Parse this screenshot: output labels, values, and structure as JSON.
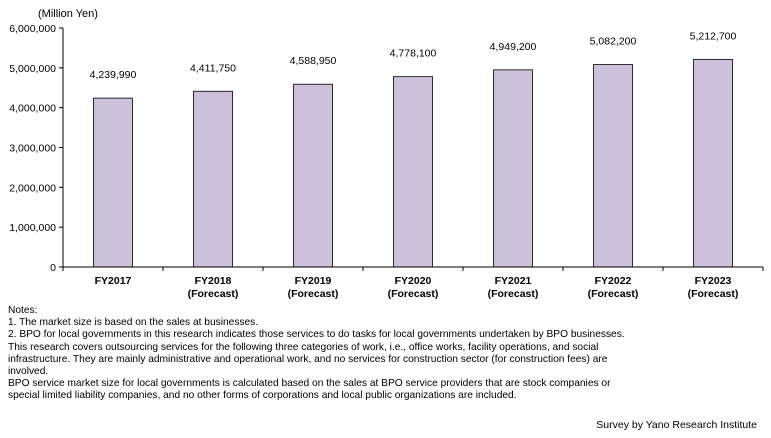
{
  "chart_data": {
    "type": "bar",
    "unit_label": "(Million Yen)",
    "categories": [
      {
        "line1": "FY2017",
        "line2": ""
      },
      {
        "line1": "FY2018",
        "line2": "(Forecast)"
      },
      {
        "line1": "FY2019",
        "line2": "(Forecast)"
      },
      {
        "line1": "FY2020",
        "line2": "(Forecast)"
      },
      {
        "line1": "FY2021",
        "line2": "(Forecast)"
      },
      {
        "line1": "FY2022",
        "line2": "(Forecast)"
      },
      {
        "line1": "FY2023",
        "line2": "(Forecast)"
      }
    ],
    "values": [
      4239990,
      4411750,
      4588950,
      4778100,
      4949200,
      5082200,
      5212700
    ],
    "value_labels": [
      "4,239,990",
      "4,411,750",
      "4,588,950",
      "4,778,100",
      "4,949,200",
      "5,082,200",
      "5,212,700"
    ],
    "ylim": [
      0,
      6000000
    ],
    "yticks": [
      0,
      1000000,
      2000000,
      3000000,
      4000000,
      5000000,
      6000000
    ],
    "ytick_labels": [
      "0",
      "1,000,000",
      "2,000,000",
      "3,000,000",
      "4,000,000",
      "5,000,000",
      "6,000,000"
    ],
    "grid": false,
    "bar_color": "#ccc0da",
    "bar_edge_color": "#000000"
  },
  "notes": {
    "heading": "Notes:",
    "lines": [
      "1. The market size is based on the sales at businesses.",
      "2. BPO for local governments in this research indicates those services to do tasks for local governments undertaken by BPO businesses.",
      "This research covers outsourcing services for the following three categories of work, i.e., office works, facility operations, and social",
      "infrastructure. They are mainly administrative and operational work, and no services for construction sector (for construction fees) are",
      "involved.",
      "BPO service market size for local governments is calculated based on the sales at BPO service providers that are stock companies or",
      "special limited liability companies, and no other forms of corporations and local public organizations are included."
    ]
  },
  "source": "Survey by Yano Research Institute"
}
